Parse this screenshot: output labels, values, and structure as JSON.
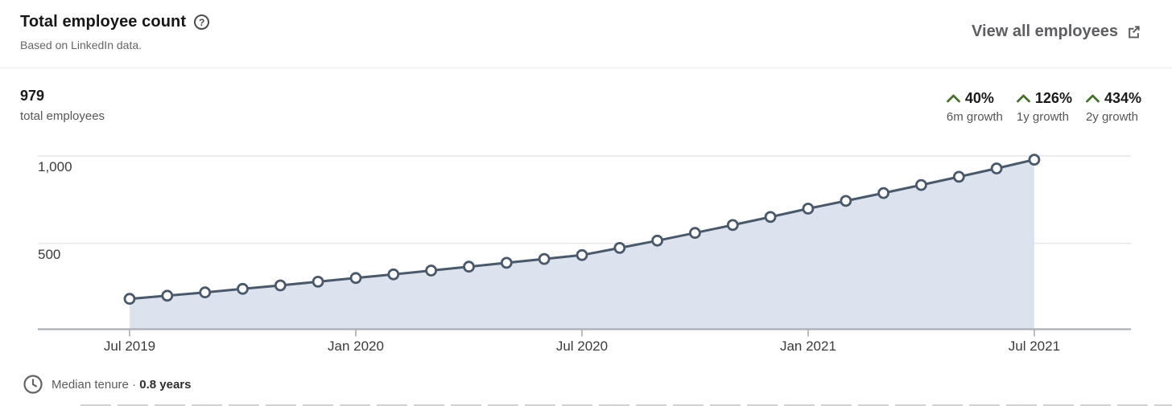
{
  "header": {
    "title": "Total employee count",
    "help_icon": "question-mark-circle",
    "subtitle": "Based on LinkedIn data.",
    "view_all_label": "View all employees",
    "view_all_icon": "external-link"
  },
  "summary": {
    "value": "979",
    "label": "total employees",
    "growth_color": "#44712e",
    "growth_stats": [
      {
        "value": "40%",
        "label": "6m growth"
      },
      {
        "value": "126%",
        "label": "1y growth"
      },
      {
        "value": "434%",
        "label": "2y growth"
      }
    ]
  },
  "chart_data": {
    "type": "area",
    "title": "Total employee count",
    "xlabel": "",
    "ylabel": "",
    "grid": true,
    "legend": false,
    "ylim": [
      0,
      1100
    ],
    "x": [
      "Jul 2019",
      "Aug 2019",
      "Sep 2019",
      "Oct 2019",
      "Nov 2019",
      "Dec 2019",
      "Jan 2020",
      "Feb 2020",
      "Mar 2020",
      "Apr 2020",
      "May 2020",
      "Jun 2020",
      "Jul 2020",
      "Aug 2020",
      "Sep 2020",
      "Oct 2020",
      "Nov 2020",
      "Dec 2020",
      "Jan 2021",
      "Feb 2021",
      "Mar 2021",
      "Apr 2021",
      "May 2021",
      "Jun 2021",
      "Jul 2021"
    ],
    "values": [
      183,
      201,
      220,
      240,
      260,
      281,
      302,
      323,
      345,
      367,
      389,
      411,
      433,
      474,
      516,
      560,
      605,
      651,
      699,
      743,
      788,
      834,
      881,
      929,
      979
    ],
    "x_ticks": [
      {
        "index": 0,
        "label": "Jul 2019"
      },
      {
        "index": 6,
        "label": "Jan 2020"
      },
      {
        "index": 12,
        "label": "Jul 2020"
      },
      {
        "index": 18,
        "label": "Jan 2021"
      },
      {
        "index": 24,
        "label": "Jul 2021"
      }
    ],
    "y_ticks": [
      {
        "value": 500,
        "label": "500"
      },
      {
        "value": 1000,
        "label": "1,000"
      }
    ],
    "line_color": "#49596b",
    "fill_color": "#dce3ee",
    "marker_fill": "#ffffff",
    "grid_color": "#e2e2e2",
    "axis_color": "#a9afb6"
  },
  "footer": {
    "icon": "clock",
    "label": "Median tenure",
    "separator": "·",
    "value": "0.8 years"
  }
}
